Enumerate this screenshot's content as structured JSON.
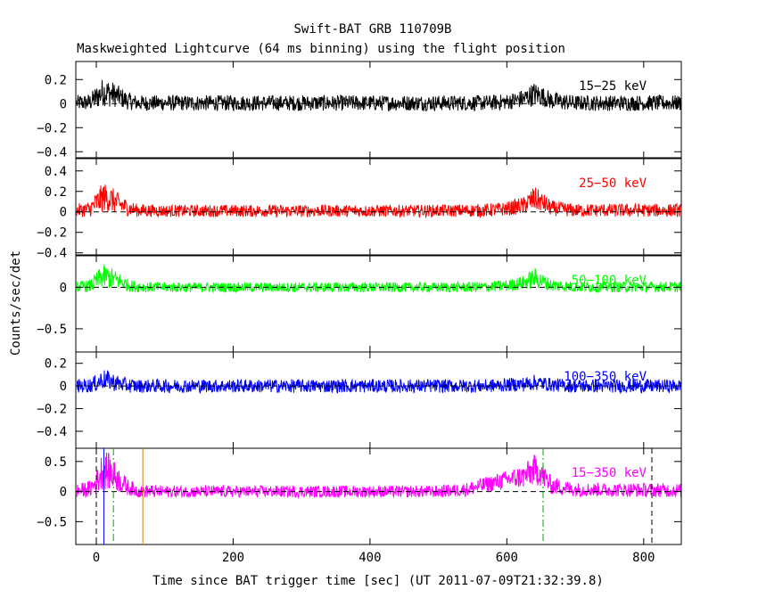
{
  "chart_data": {
    "type": "line",
    "title": "Swift-BAT GRB 110709B",
    "subtitle": "Maskweighted Lightcurve (64 ms binning) using the flight position",
    "xlabel": "Time since BAT trigger time [sec] (UT 2011-07-09T21:32:39.8)",
    "ylabel": "Counts/sec/det",
    "xlim": [
      -30,
      855
    ],
    "x_ticks": [
      0,
      200,
      400,
      600,
      800
    ],
    "x_tick_labels": [
      "0",
      "200",
      "400",
      "600",
      "800"
    ],
    "grid": false,
    "panels": [
      {
        "name": "15-25 keV",
        "label": "15−25 keV",
        "color": "#000000",
        "ylim": [
          -0.45,
          0.35
        ],
        "y_ticks": [
          0.2,
          0,
          -0.2,
          -0.4
        ],
        "y_tick_labels": [
          "0.2",
          "0",
          "−0.2",
          "−0.4"
        ],
        "envelope": {
          "x": [
            -30,
            -10,
            0,
            10,
            20,
            30,
            45,
            60,
            100,
            300,
            500,
            570,
            600,
            625,
            640,
            650,
            665,
            700,
            855
          ],
          "ymin": [
            -0.06,
            -0.06,
            -0.05,
            -0.02,
            -0.03,
            -0.03,
            -0.05,
            -0.06,
            -0.06,
            -0.06,
            -0.06,
            -0.06,
            -0.05,
            -0.04,
            -0.02,
            -0.02,
            -0.05,
            -0.06,
            -0.06
          ],
          "ymax": [
            0.07,
            0.08,
            0.15,
            0.22,
            0.2,
            0.16,
            0.1,
            0.07,
            0.07,
            0.07,
            0.07,
            0.07,
            0.08,
            0.12,
            0.18,
            0.15,
            0.1,
            0.07,
            0.07
          ]
        }
      },
      {
        "name": "25-50 keV",
        "label": "25−50 keV",
        "color": "#ff0000",
        "ylim": [
          -0.42,
          0.52
        ],
        "y_ticks": [
          0.4,
          0.2,
          0,
          -0.2,
          -0.4
        ],
        "y_tick_labels": [
          "0.4",
          "0.2",
          "0",
          "−0.2",
          "−0.4"
        ],
        "envelope": {
          "x": [
            -30,
            -10,
            0,
            10,
            20,
            30,
            45,
            60,
            100,
            300,
            500,
            570,
            600,
            625,
            640,
            650,
            665,
            700,
            855
          ],
          "ymin": [
            -0.05,
            -0.05,
            -0.03,
            0.0,
            -0.01,
            -0.02,
            -0.04,
            -0.05,
            -0.05,
            -0.05,
            -0.05,
            -0.05,
            -0.04,
            -0.02,
            0.0,
            0.0,
            -0.04,
            -0.05,
            -0.05
          ],
          "ymax": [
            0.08,
            0.1,
            0.2,
            0.29,
            0.26,
            0.2,
            0.12,
            0.08,
            0.07,
            0.07,
            0.07,
            0.08,
            0.1,
            0.15,
            0.25,
            0.2,
            0.11,
            0.08,
            0.08
          ]
        }
      },
      {
        "name": "50-100 keV",
        "label": "50−100 keV",
        "color": "#00ff00",
        "ylim": [
          -0.78,
          0.38
        ],
        "y_ticks": [
          0,
          -0.5
        ],
        "y_tick_labels": [
          "0",
          "−0.5"
        ],
        "envelope": {
          "x": [
            -30,
            -10,
            0,
            10,
            20,
            30,
            45,
            60,
            100,
            300,
            500,
            570,
            600,
            625,
            640,
            650,
            665,
            700,
            855
          ],
          "ymin": [
            -0.06,
            -0.06,
            -0.04,
            -0.01,
            -0.02,
            -0.03,
            -0.05,
            -0.06,
            -0.06,
            -0.06,
            -0.06,
            -0.06,
            -0.05,
            -0.03,
            -0.01,
            -0.02,
            -0.05,
            -0.06,
            -0.06
          ],
          "ymax": [
            0.07,
            0.09,
            0.18,
            0.28,
            0.25,
            0.2,
            0.11,
            0.07,
            0.06,
            0.06,
            0.06,
            0.07,
            0.09,
            0.14,
            0.24,
            0.18,
            0.1,
            0.07,
            0.07
          ]
        }
      },
      {
        "name": "100-350 keV",
        "label": "100−350 keV",
        "color": "#0000ff",
        "ylim": [
          -0.55,
          0.3
        ],
        "y_ticks": [
          0.2,
          0,
          -0.2,
          -0.4
        ],
        "y_tick_labels": [
          "0.2",
          "0",
          "−0.2",
          "−0.4"
        ],
        "envelope": {
          "x": [
            -30,
            -10,
            0,
            10,
            20,
            30,
            45,
            60,
            100,
            300,
            500,
            570,
            600,
            625,
            640,
            650,
            665,
            700,
            855
          ],
          "ymin": [
            -0.06,
            -0.06,
            -0.05,
            -0.03,
            -0.04,
            -0.05,
            -0.06,
            -0.06,
            -0.06,
            -0.06,
            -0.06,
            -0.06,
            -0.05,
            -0.05,
            -0.04,
            -0.04,
            -0.05,
            -0.06,
            -0.06
          ],
          "ymax": [
            0.06,
            0.07,
            0.1,
            0.15,
            0.13,
            0.1,
            0.07,
            0.06,
            0.06,
            0.06,
            0.06,
            0.06,
            0.07,
            0.08,
            0.1,
            0.09,
            0.07,
            0.06,
            0.06
          ]
        }
      },
      {
        "name": "15-350 keV",
        "label": "15−350 keV",
        "color": "#ff00ff",
        "ylim": [
          -0.88,
          0.72
        ],
        "y_ticks": [
          0.5,
          0,
          -0.5
        ],
        "y_tick_labels": [
          "0.5",
          "0",
          "−0.5"
        ],
        "envelope": {
          "x": [
            -30,
            -10,
            0,
            10,
            20,
            30,
            45,
            60,
            100,
            300,
            500,
            540,
            570,
            600,
            625,
            640,
            650,
            665,
            700,
            855
          ],
          "ymin": [
            -0.1,
            -0.1,
            -0.05,
            0.05,
            0.02,
            0.0,
            -0.06,
            -0.1,
            -0.1,
            -0.1,
            -0.1,
            -0.08,
            -0.02,
            0.05,
            0.05,
            0.1,
            0.08,
            -0.05,
            -0.08,
            -0.1
          ],
          "ymax": [
            0.12,
            0.18,
            0.35,
            0.72,
            0.62,
            0.45,
            0.22,
            0.12,
            0.1,
            0.1,
            0.1,
            0.15,
            0.25,
            0.35,
            0.45,
            0.62,
            0.55,
            0.25,
            0.15,
            0.14
          ]
        }
      }
    ],
    "markers": [
      {
        "name": "t-start",
        "x": 0,
        "color": "#000000",
        "style": "dashed"
      },
      {
        "name": "t90-start",
        "x": 11,
        "color": "#0000ff",
        "style": "solid"
      },
      {
        "name": "t90-end",
        "x": 25,
        "color": "#00aa00",
        "style": "dashdot"
      },
      {
        "name": "t100-end",
        "x": 68,
        "color": "#cc8800",
        "style": "solid"
      },
      {
        "name": "t-second-pulse",
        "x": 653,
        "color": "#00aa00",
        "style": "dashdot"
      },
      {
        "name": "t-end",
        "x": 812,
        "color": "#000000",
        "style": "dashed"
      }
    ]
  }
}
